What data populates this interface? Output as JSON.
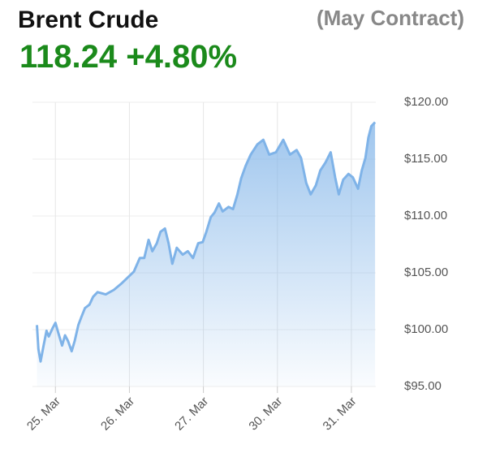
{
  "chart_data": {
    "type": "line",
    "title": "Brent Crude",
    "subtitle": "(May Contract)",
    "price": "118.24",
    "change": "+4.80%",
    "color": "#7fb3e8",
    "grid": true,
    "x": [
      -0.25,
      -0.23,
      -0.2,
      -0.16,
      -0.12,
      -0.09,
      -0.04,
      0,
      0.04,
      0.09,
      0.13,
      0.17,
      0.22,
      0.26,
      0.31,
      0.35,
      0.4,
      0.46,
      0.51,
      0.57,
      0.68,
      0.79,
      0.9,
      0.98,
      1.06,
      1.14,
      1.2,
      1.26,
      1.31,
      1.37,
      1.42,
      1.48,
      1.53,
      1.58,
      1.64,
      1.72,
      1.79,
      1.86,
      1.93,
      1.99,
      2.04,
      2.1,
      2.15,
      2.21,
      2.26,
      2.34,
      2.4,
      2.46,
      2.51,
      2.57,
      2.64,
      2.73,
      2.81,
      2.89,
      2.98,
      3.08,
      3.17,
      3.26,
      3.32,
      3.39,
      3.45,
      3.52,
      3.58,
      3.65,
      3.72,
      3.78,
      3.83,
      3.89,
      3.96,
      4.02,
      4.09,
      4.14,
      4.19,
      4.23,
      4.27,
      4.32
    ],
    "values": [
      100.4,
      98.3,
      97.2,
      98.6,
      99.9,
      99.4,
      100.1,
      100.6,
      99.7,
      98.6,
      99.5,
      99.0,
      98.1,
      99.0,
      100.4,
      101.1,
      101.9,
      102.2,
      102.9,
      103.3,
      103.1,
      103.5,
      104.1,
      104.6,
      105.1,
      106.3,
      106.3,
      107.9,
      106.9,
      107.6,
      108.6,
      108.9,
      107.6,
      105.8,
      107.2,
      106.6,
      106.9,
      106.3,
      107.6,
      107.7,
      108.6,
      109.9,
      110.3,
      111.1,
      110.4,
      110.8,
      110.6,
      111.9,
      113.3,
      114.4,
      115.4,
      116.3,
      116.7,
      115.4,
      115.6,
      116.7,
      115.4,
      115.8,
      115.1,
      112.9,
      111.9,
      112.7,
      114.0,
      114.7,
      115.6,
      113.4,
      111.9,
      113.2,
      113.7,
      113.4,
      112.4,
      114.0,
      115.1,
      116.9,
      117.9,
      118.24
    ],
    "xlim": [
      -0.31,
      4.33
    ],
    "xticks": [
      {
        "value": 0,
        "label": "25. Mar"
      },
      {
        "value": 1,
        "label": "26. Mar"
      },
      {
        "value": 2,
        "label": "27. Mar"
      },
      {
        "value": 3,
        "label": "30. Mar"
      },
      {
        "value": 4,
        "label": "31. Mar"
      }
    ],
    "ylim": [
      95,
      120
    ],
    "yticks": [
      {
        "value": 95,
        "label": "$95.00"
      },
      {
        "value": 100,
        "label": "$100.00"
      },
      {
        "value": 105,
        "label": "$105.00"
      },
      {
        "value": 110,
        "label": "$110.00"
      },
      {
        "value": 115,
        "label": "$115.00"
      },
      {
        "value": 120,
        "label": "$120.00"
      }
    ]
  }
}
